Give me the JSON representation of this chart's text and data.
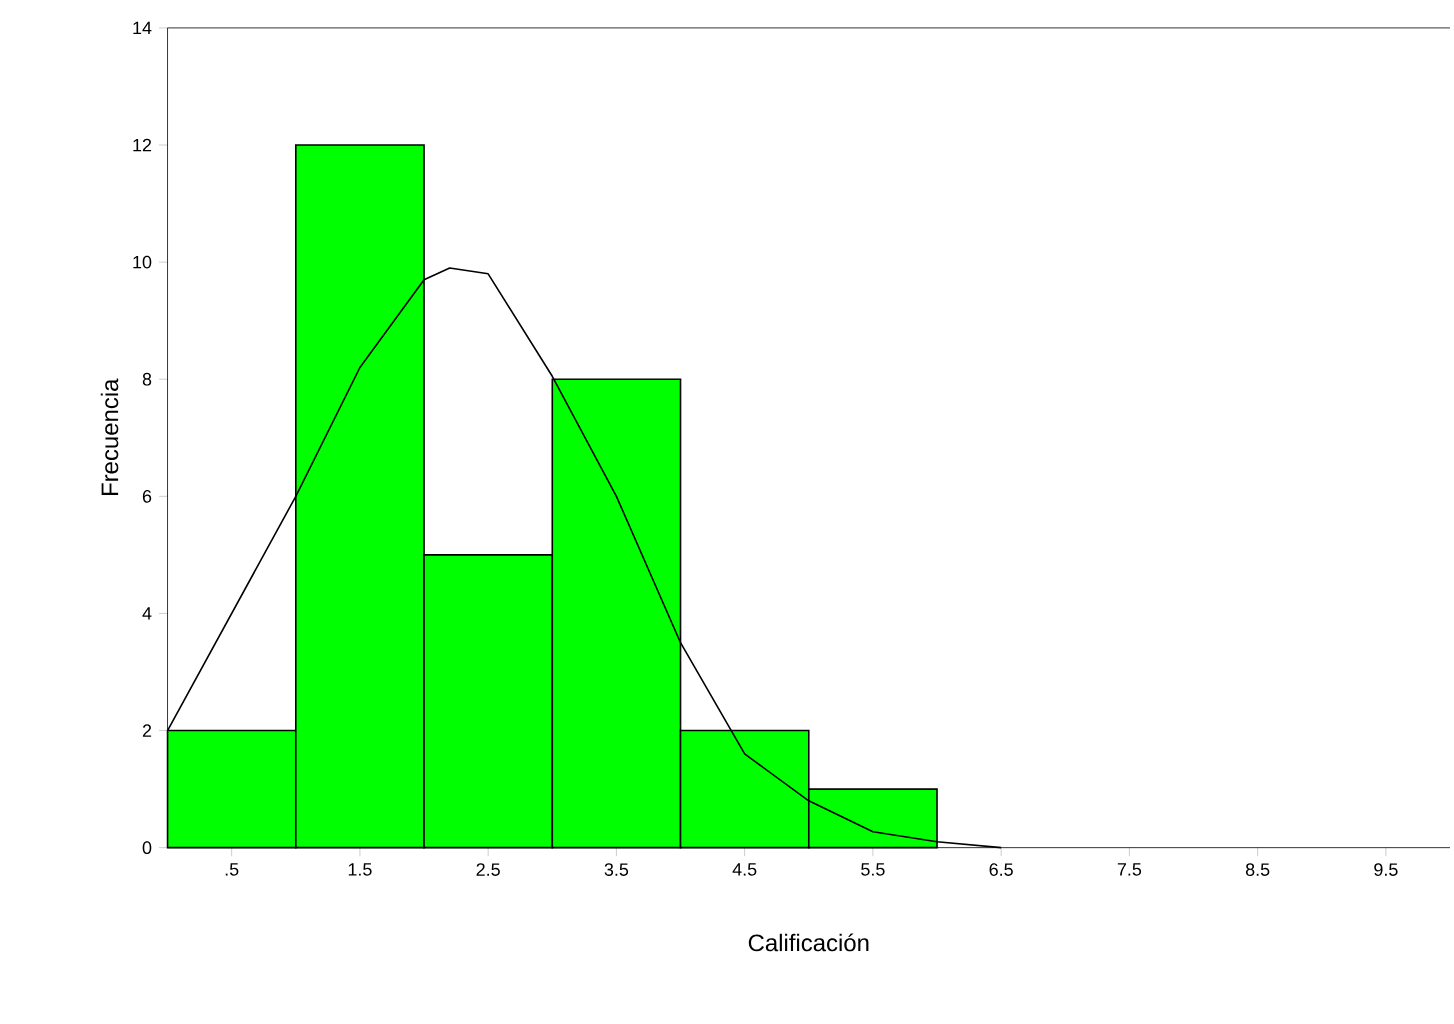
{
  "chart_data": {
    "type": "histogram",
    "xlabel": "Calificación",
    "ylabel": "Frecuencia",
    "bins": [
      0,
      1,
      2,
      3,
      4,
      5,
      6
    ],
    "values": [
      2,
      12,
      5,
      8,
      2,
      1
    ],
    "color": "#00ff00",
    "xlim": [
      0,
      10
    ],
    "ylim": [
      0,
      14
    ],
    "xticks": [
      {
        "value": 0.5,
        "label": ".5"
      },
      1.5,
      2.5,
      3.5,
      4.5,
      5.5,
      6.5,
      7.5,
      8.5,
      9.5
    ],
    "yticks": [
      0,
      2,
      4,
      6,
      8,
      10,
      12,
      14
    ],
    "series": [
      {
        "type": "line",
        "color": "#000000",
        "x": [
          0,
          0.5,
          1,
          1.5,
          2,
          2.2,
          2.5,
          3,
          3.5,
          4,
          4.5,
          5,
          5.5,
          6,
          6.5
        ],
        "values": [
          2.0,
          4.0,
          6.0,
          8.2,
          9.7,
          9.9,
          9.8,
          8.05,
          6.0,
          3.5,
          1.6,
          0.8,
          0.27,
          0.1,
          0
        ]
      }
    ]
  }
}
